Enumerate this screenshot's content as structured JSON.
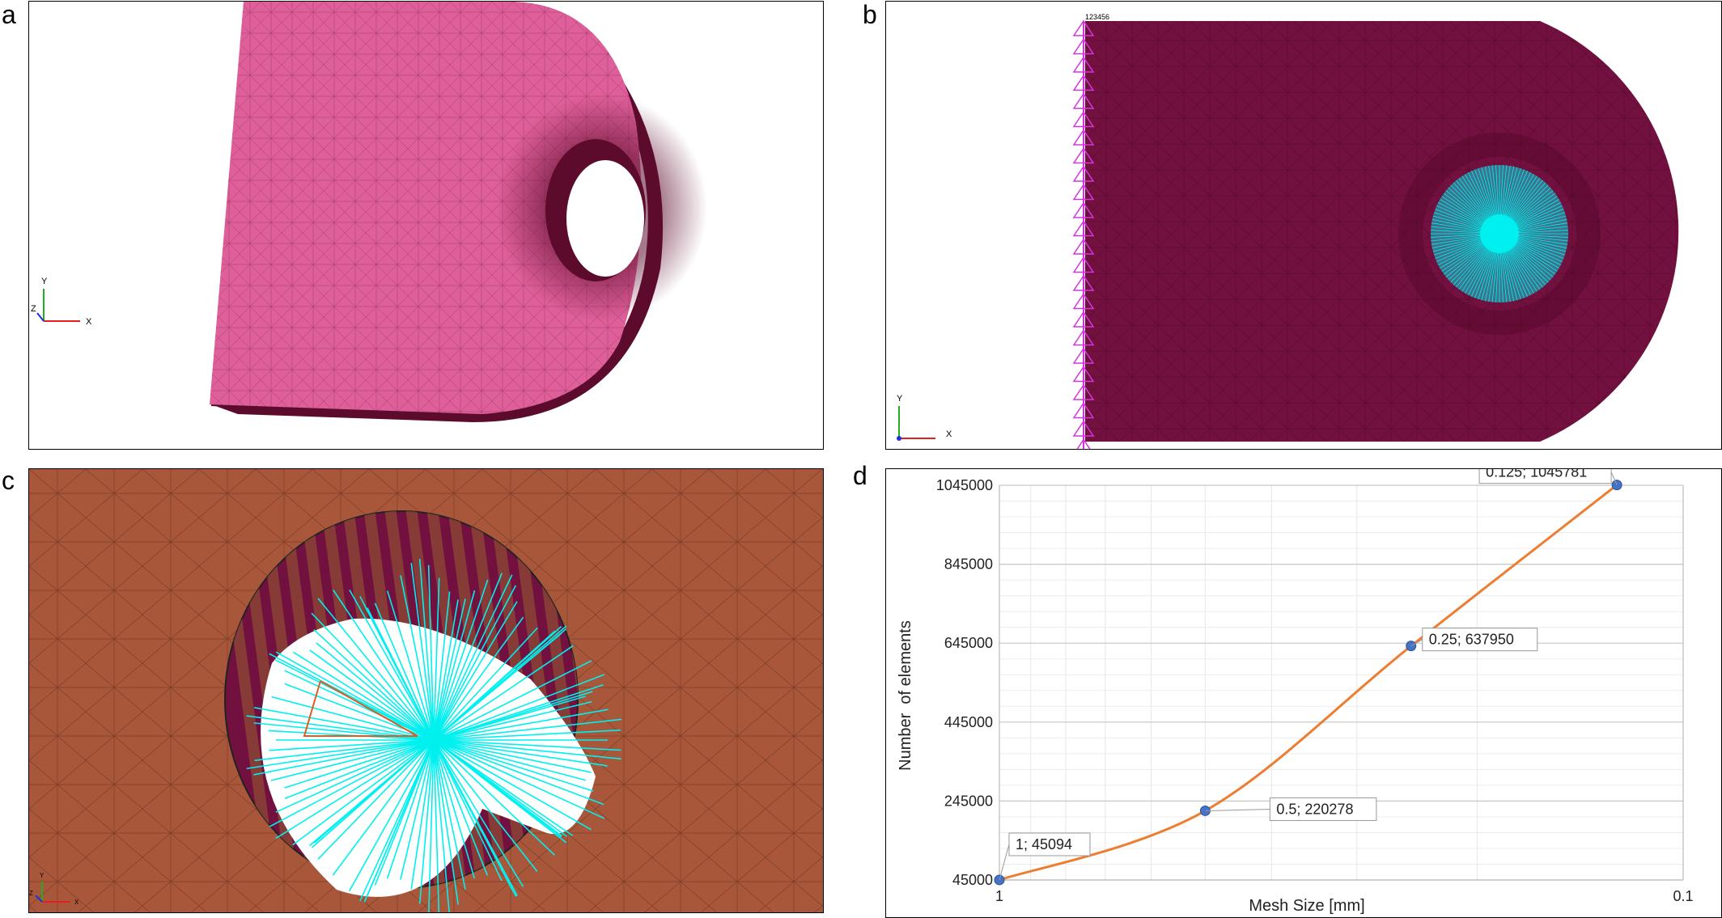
{
  "panels": {
    "a": {
      "label": "a",
      "axis_y": "Y",
      "axis_x": "X",
      "axis_z": "Z"
    },
    "b": {
      "label": "b",
      "axis_y": "Y",
      "axis_x": "X",
      "constraint_label": "123456"
    },
    "c": {
      "label": "c",
      "axis_y": "Y",
      "axis_x": "X",
      "axis_z": "Z"
    },
    "d": {
      "label": "d"
    }
  },
  "colors": {
    "part_pink": "#de5f99",
    "part_pink_side": "#5c0b2c",
    "part_maroon": "#72103f",
    "rigid_cyan": "#00f0f0",
    "constraint_magenta": "#d633e0",
    "part_brown": "#a9573a",
    "curve_orange": "#ed7d31",
    "marker_blue": "#4472c4"
  },
  "chart_data": {
    "type": "scatter",
    "xlabel": "Mesh Size [mm]",
    "ylabel": "Number  of elements",
    "x_scale": "log",
    "x_reversed": true,
    "xlim": [
      1,
      0.1
    ],
    "ylim": [
      45000,
      1045000
    ],
    "x_ticks": [
      "1",
      "0.1"
    ],
    "y_ticks": [
      "1045000",
      "845000",
      "645000",
      "445000",
      "245000",
      "45000"
    ],
    "grid": true,
    "legend": "none",
    "series": [
      {
        "x": [
          1,
          0.5,
          0.25,
          0.125
        ],
        "y": [
          45094,
          220278,
          637950,
          1045781
        ]
      }
    ],
    "annotations": [
      "1; 45094",
      "0.5; 220278",
      "0.25; 637950",
      "0.125; 1045781"
    ]
  }
}
